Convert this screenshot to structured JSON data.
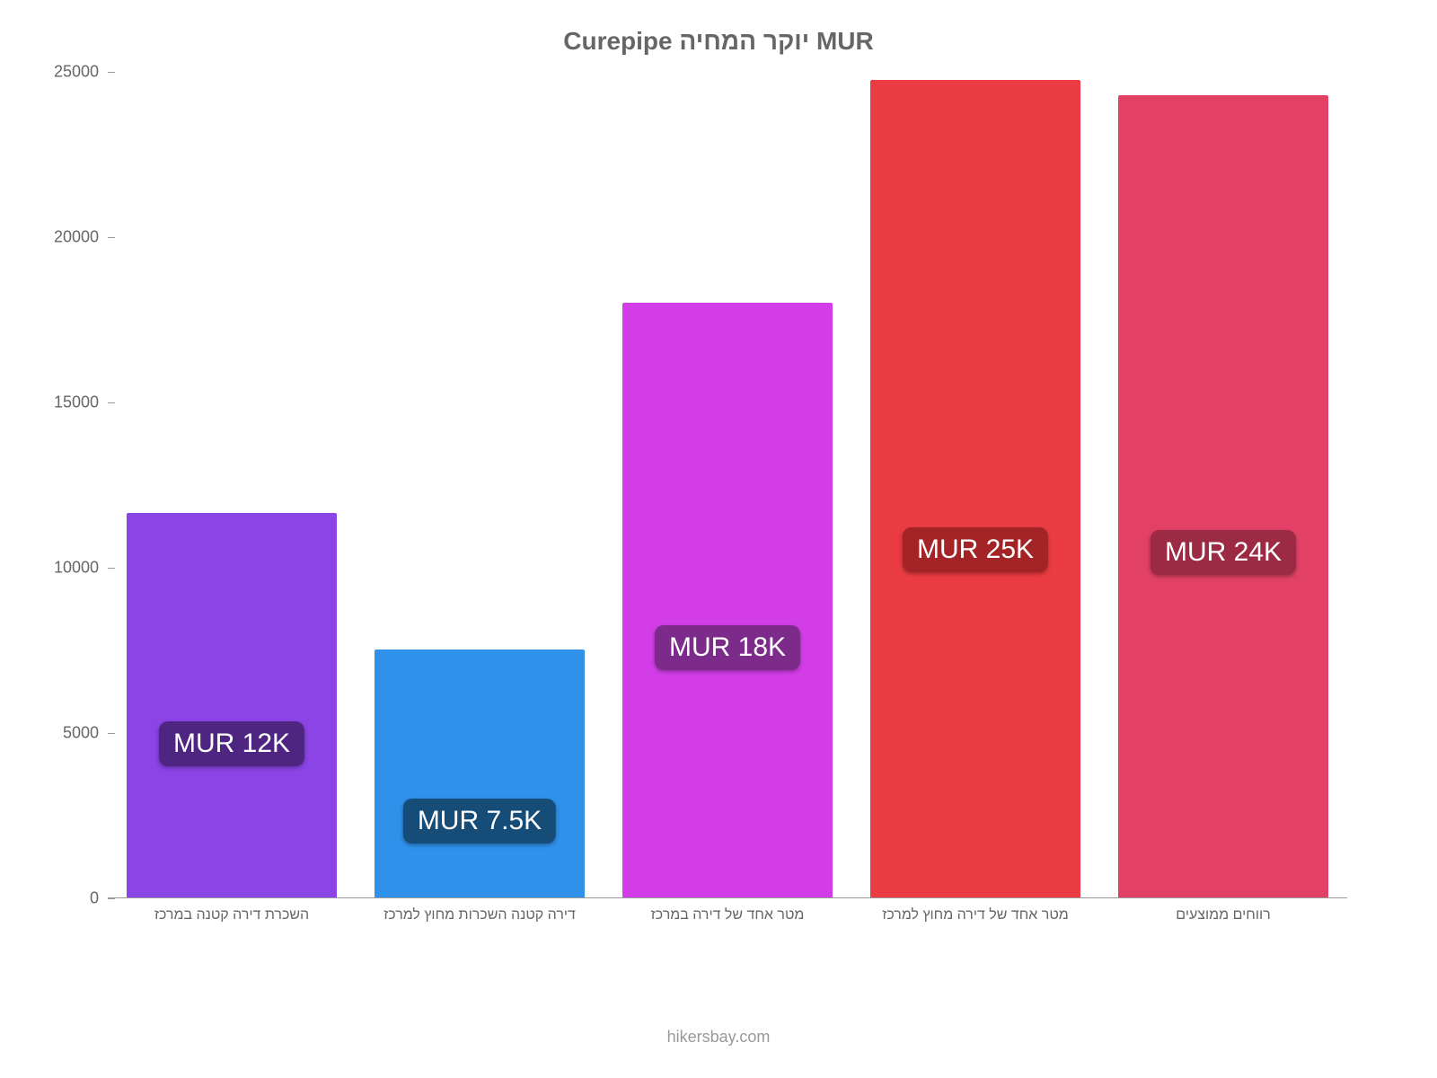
{
  "chart": {
    "type": "bar",
    "title": "Curepipe יוקר המחיה MUR",
    "title_fontsize": 28,
    "title_color": "#666666",
    "background_color": "#ffffff",
    "ylim": [
      0,
      25000
    ],
    "yticks": [
      0,
      5000,
      10000,
      15000,
      20000,
      25000
    ],
    "axis_color": "#999999",
    "tick_fontsize": 18,
    "xlabel_fontsize": 16,
    "label_color": "#666666",
    "bar_width": 0.85,
    "data_label_fontsize": 30,
    "bars": [
      {
        "category": "השכרת דירה קטנה במרכז",
        "value": 11650,
        "label": "MUR 12K",
        "bar_color": "#8b44e6",
        "label_bg": "#4e2682",
        "label_y_frac": 0.6
      },
      {
        "category": "דירה קטנה השכרות מחוץ למרכז",
        "value": 7500,
        "label": "MUR 7.5K",
        "bar_color": "#2f91ea",
        "label_bg": "#164d78",
        "label_y_frac": 0.69
      },
      {
        "category": "מטר אחד של דירה במרכז",
        "value": 18000,
        "label": "MUR 18K",
        "bar_color": "#d23de8",
        "label_bg": "#7d2b8b",
        "label_y_frac": 0.58
      },
      {
        "category": "מטר אחד של דירה מחוץ למרכז",
        "value": 24750,
        "label": "MUR 25K",
        "bar_color": "#ea3c42",
        "label_bg": "#a32327",
        "label_y_frac": 0.575
      },
      {
        "category": "רווחים ממוצעים",
        "value": 24300,
        "label": "MUR 24K",
        "bar_color": "#e24165",
        "label_bg": "#9c2a44",
        "label_y_frac": 0.57
      }
    ],
    "source": "hikersbay.com",
    "source_color": "#999999"
  }
}
